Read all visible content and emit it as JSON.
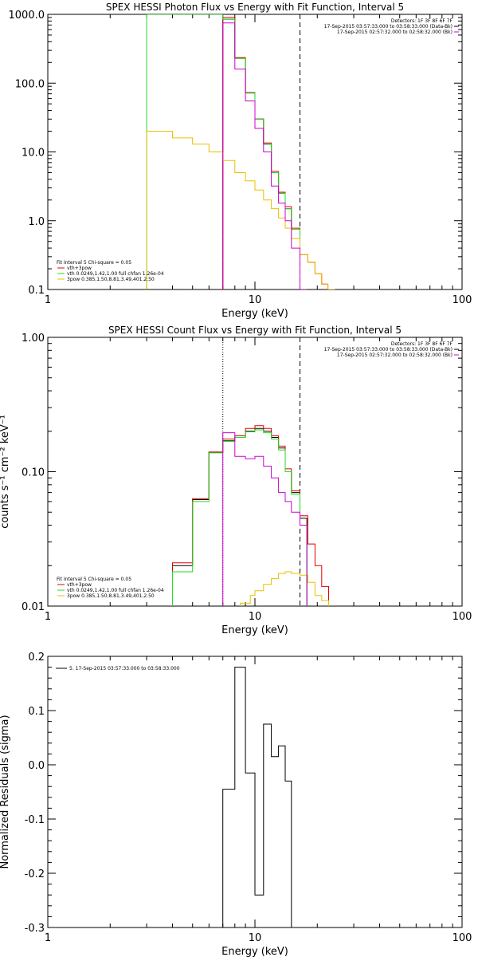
{
  "colors": {
    "black": "#000000",
    "red": "#e00000",
    "green": "#22dd22",
    "magenta": "#d000d0",
    "gold": "#e8c000",
    "purple_line": "#7000c0"
  },
  "chart_data": [
    {
      "type": "line",
      "title": "SPEX HESSI Photon Flux vs Energy with Fit Function, Interval 5",
      "xlabel": "Energy (keV)",
      "ylabel": "",
      "xscale": "log",
      "yscale": "log",
      "xlim": [
        1,
        100
      ],
      "ylim": [
        0.1,
        1000
      ],
      "xticks": [
        "1",
        "10",
        "100"
      ],
      "yticks": [
        "0.1",
        "1.0",
        "10.0",
        "100.0",
        "1000.0"
      ],
      "legend_top_right": [
        "Detectors: 1F 3F 8F 6F 7F",
        "17-Sep-2015 03:57:33.000 to 03:58:33.000 (Data-Bk)",
        "17-Sep-2015 02:57:32.000 to 02:58:32.000 (Bk)"
      ],
      "legend_bottom_left": [
        "Fit Interval 5   Chi-square = 0.05",
        "vth+3pow",
        "vth 0.0249,1.42,1.00  full chfan 1.26e-04",
        "3pow 0.385,1.50,8.81,3.49,401,2.50"
      ],
      "vlines": [
        {
          "x": 7.0,
          "style": "dotted-purple"
        },
        {
          "x": 16.5,
          "style": "dashed-black"
        }
      ],
      "series": [
        {
          "name": "Data-Bk",
          "color": "black",
          "x": [
            7.0,
            8.0,
            9.0,
            10.0,
            11.0,
            12.0,
            13.0,
            14.0,
            15.0,
            16.5
          ],
          "y": [
            850,
            230,
            72,
            30,
            13,
            5,
            2.5,
            1.5,
            0.75,
            0.1
          ]
        },
        {
          "name": "vth+3pow",
          "color": "red",
          "x": [
            7.0,
            8.0,
            9.0,
            10.0,
            11.0,
            12.0,
            13.0,
            14.0,
            15.0,
            16.5,
            18.0,
            19.5,
            21.0,
            22.5
          ],
          "y": [
            900,
            235,
            73,
            30,
            13.5,
            5.2,
            2.6,
            1.6,
            0.78,
            0.32,
            0.25,
            0.17,
            0.12,
            0.1
          ]
        },
        {
          "name": "vth",
          "color": "green",
          "x": [
            3.0,
            7.0,
            8.0,
            9.0,
            10.0,
            11.0,
            12.0,
            13.0,
            14.0,
            15.0,
            16.5
          ],
          "y": [
            1000,
            850,
            230,
            72,
            30,
            13,
            5,
            2.5,
            1.5,
            0.75,
            0.1
          ]
        },
        {
          "name": "3pow",
          "color": "gold",
          "x": [
            3.0,
            4.0,
            5.0,
            6.0,
            7.0,
            8.0,
            9.0,
            10.0,
            11.0,
            12.0,
            13.0,
            14.0,
            15.0,
            16.5,
            18.0,
            19.5,
            21.0,
            22.5
          ],
          "y": [
            20,
            16,
            13,
            10,
            7.5,
            5,
            3.8,
            2.8,
            2.0,
            1.5,
            1.1,
            0.78,
            0.55,
            0.32,
            0.25,
            0.17,
            0.12,
            0.1
          ]
        },
        {
          "name": "Bk",
          "color": "magenta",
          "x": [
            7.0,
            8.0,
            9.0,
            10.0,
            11.0,
            12.0,
            13.0,
            14.0,
            15.0,
            16.5
          ],
          "y": [
            750,
            160,
            55,
            22,
            10,
            3.2,
            1.8,
            1.0,
            0.4,
            0.1
          ]
        }
      ]
    },
    {
      "type": "line",
      "title": "SPEX HESSI Count Flux vs Energy with Fit Function, Interval 5",
      "xlabel": "Energy (keV)",
      "ylabel": "counts s⁻¹ cm⁻² keV⁻¹",
      "xscale": "log",
      "yscale": "log",
      "xlim": [
        1,
        100
      ],
      "ylim": [
        0.01,
        1.0
      ],
      "xticks": [
        "1",
        "10",
        "100"
      ],
      "yticks": [
        "0.01",
        "0.10",
        "1.00"
      ],
      "legend_top_right": [
        "Detectors: 1F 3F 8F 6F 7F",
        "17-Sep-2015 03:57:33.000 to 03:58:33.000 (Data-Bk)",
        "17-Sep-2015 02:57:32.000 to 02:58:32.000 (Bk)"
      ],
      "legend_bottom_left": [
        "Fit Interval 5   Chi-square = 0.05",
        "vth+3pow",
        "vth 0.0249,1.42,1.00  full chfan 1.26e-04",
        "3pow 0.385,1.50,8.81,3.49,401,2.50"
      ],
      "vlines": [
        {
          "x": 7.0,
          "style": "dotted-black"
        },
        {
          "x": 16.5,
          "style": "dashed-black"
        }
      ],
      "series": [
        {
          "name": "Data-Bk",
          "color": "black",
          "x": [
            4.0,
            5.0,
            6.0,
            7.0,
            8.0,
            9.0,
            10.0,
            11.0,
            12.0,
            13.0,
            14.0,
            15.0,
            16.5
          ],
          "y": [
            0.02,
            0.062,
            0.14,
            0.17,
            0.18,
            0.2,
            0.21,
            0.2,
            0.18,
            0.15,
            0.1,
            0.07,
            0.045
          ]
        },
        {
          "name": "vth+3pow",
          "color": "red",
          "x": [
            4.0,
            5.0,
            6.0,
            7.0,
            8.0,
            9.0,
            10.0,
            11.0,
            12.0,
            13.0,
            14.0,
            15.0,
            16.5,
            18.0,
            19.5,
            21.0
          ],
          "y": [
            0.021,
            0.063,
            0.14,
            0.175,
            0.185,
            0.21,
            0.22,
            0.21,
            0.185,
            0.155,
            0.105,
            0.072,
            0.047,
            0.029,
            0.02,
            0.014
          ]
        },
        {
          "name": "vth",
          "color": "green",
          "x": [
            4.0,
            5.0,
            6.0,
            7.0,
            8.0,
            9.0,
            10.0,
            11.0,
            12.0,
            13.0,
            14.0,
            15.0,
            16.5
          ],
          "y": [
            0.018,
            0.06,
            0.138,
            0.168,
            0.18,
            0.198,
            0.205,
            0.195,
            0.175,
            0.145,
            0.1,
            0.068,
            0.04
          ]
        },
        {
          "name": "3pow",
          "color": "gold",
          "x": [
            8.5,
            9.5,
            10.0,
            11.0,
            12.0,
            13.0,
            14.0,
            15.0,
            16.5,
            18.0,
            19.5,
            21.0
          ],
          "y": [
            0.0105,
            0.012,
            0.013,
            0.0145,
            0.016,
            0.0175,
            0.018,
            0.0175,
            0.017,
            0.015,
            0.012,
            0.011
          ]
        },
        {
          "name": "Bk",
          "color": "magenta",
          "x": [
            7.0,
            8.0,
            9.0,
            10.0,
            11.0,
            12.0,
            13.0,
            14.0,
            15.0,
            16.5
          ],
          "y": [
            0.195,
            0.13,
            0.125,
            0.13,
            0.11,
            0.09,
            0.07,
            0.06,
            0.05,
            0.04
          ]
        }
      ]
    },
    {
      "type": "line",
      "title": "",
      "xlabel": "Energy (keV)",
      "ylabel": "Normalized Residuals (sigma)",
      "xscale": "log",
      "yscale": "linear",
      "xlim": [
        1,
        100
      ],
      "ylim": [
        -0.3,
        0.2
      ],
      "xticks": [
        "1",
        "10",
        "100"
      ],
      "yticks": [
        "-0.3",
        "-0.2",
        "-0.1",
        "0.0",
        "0.1",
        "0.2"
      ],
      "legend_top_left": [
        "5. 17-Sep-2015 03:57:33.000 to 03:58:33.000"
      ],
      "series": [
        {
          "name": "5. 17-Sep-2015 03:57:33.000 to 03:58:33.000",
          "color": "black",
          "x": [
            7.0,
            8.0,
            9.0,
            10.0,
            11.0,
            12.0,
            13.0,
            14.0,
            15.0,
            16.5
          ],
          "y": [
            -0.045,
            0.18,
            -0.015,
            -0.24,
            0.075,
            0.015,
            0.035,
            -0.03,
            -0.3,
            -0.3
          ]
        }
      ]
    }
  ]
}
